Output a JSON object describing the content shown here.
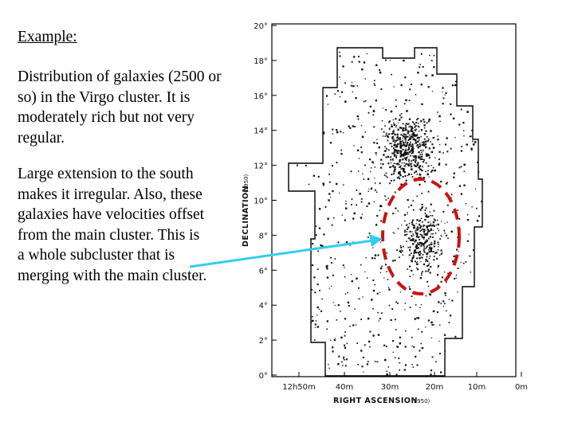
{
  "text": {
    "heading": "Example:",
    "paragraph1": "Distribution of galaxies (2500 or so) in the Virgo cluster.  It is moderately rich but not very regular.",
    "paragraph2": "Large extension to the south makes it irregular.  Also, these galaxies have velocities offset from the main cluster.  This is a whole subcluster that is merging with the main cluster."
  },
  "figure": {
    "y_axis_label": "DECLINATION",
    "y_axis_epoch": "(1950)",
    "x_axis_label": "RIGHT ASCENSION",
    "x_axis_epoch": "(1950)",
    "y_ticks": [
      "0°",
      "2°",
      "4°",
      "6°",
      "8°",
      "10°",
      "12°",
      "14°",
      "16°",
      "18°",
      "20°"
    ],
    "x_ticks": [
      "12h50m",
      "40m",
      "30m",
      "20m",
      "10m",
      "0m"
    ],
    "colors": {
      "ellipse": "#cc1111",
      "arrow": "#33ccee",
      "dots": "#111111"
    }
  }
}
